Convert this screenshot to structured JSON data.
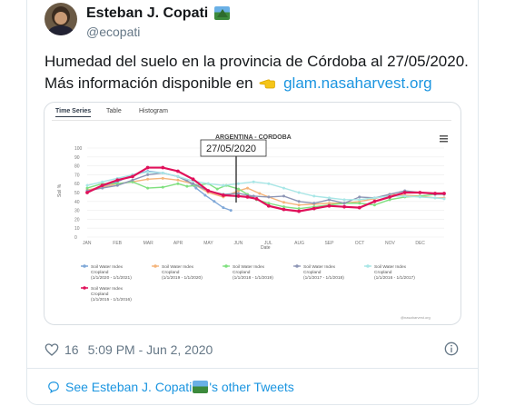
{
  "author": {
    "name": "Esteban J. Copati",
    "handle": "@ecopati",
    "flag_icon": "mountain-landscape-emoji"
  },
  "tweet": {
    "line1": "Humedad del suelo en la provincia de Córdoba al 27/05/2020.",
    "line2_prefix": "Más información disponible en",
    "pointer_icon": "backhand-index-pointing-left-emoji",
    "link_text": "glam.nasaharvest.org"
  },
  "chart_widget": {
    "tabs": [
      "Time Series",
      "Table",
      "Histogram"
    ],
    "active_tab": "Time Series",
    "watermark": "@nasaharvest.org"
  },
  "chart_data": {
    "type": "line",
    "title": "ARGENTINA - CORDOBA",
    "annotation": "27/05/2020",
    "xlabel": "Date",
    "ylabel": "Soil %",
    "x_ticks": [
      "JAN",
      "FEB",
      "MAR",
      "APR",
      "MAY",
      "JUN",
      "JUL",
      "AUG",
      "SEP",
      "OCT",
      "NOV",
      "DEC"
    ],
    "ylim": [
      0,
      100
    ],
    "y_ticks": [
      0,
      10,
      20,
      30,
      40,
      50,
      60,
      70,
      80,
      90,
      100
    ],
    "grid": true,
    "legend_position": "bottom",
    "series": [
      {
        "label": "Soil Water Index\nCropland\n(1/1/2020 - 1/1/2021)",
        "color": "#7fa8d8",
        "points": [
          [
            0.0,
            50
          ],
          [
            0.5,
            57
          ],
          [
            1.0,
            62
          ],
          [
            1.5,
            70
          ],
          [
            2.0,
            74
          ],
          [
            2.5,
            72
          ],
          [
            3.0,
            68
          ],
          [
            3.3,
            63
          ],
          [
            3.6,
            55
          ],
          [
            3.9,
            47
          ],
          [
            4.2,
            40
          ],
          [
            4.5,
            33
          ],
          [
            4.75,
            30
          ]
        ]
      },
      {
        "label": "Soil Water Index\nCropland\n(1/1/2019 - 1/1/2020)",
        "color": "#f4b47a",
        "points": [
          [
            0.0,
            53
          ],
          [
            0.5,
            56
          ],
          [
            1.0,
            60
          ],
          [
            1.5,
            62
          ],
          [
            2.0,
            65
          ],
          [
            2.5,
            66
          ],
          [
            3.0,
            64
          ],
          [
            3.5,
            60
          ],
          [
            4.0,
            50
          ],
          [
            4.5,
            45
          ],
          [
            5.0,
            52
          ],
          [
            5.3,
            55
          ],
          [
            5.7,
            49
          ],
          [
            6.0,
            45
          ],
          [
            6.5,
            39
          ],
          [
            7.0,
            36
          ],
          [
            7.5,
            37
          ],
          [
            8.0,
            38
          ],
          [
            8.5,
            38
          ],
          [
            9.0,
            40
          ],
          [
            9.5,
            43
          ],
          [
            10.0,
            48
          ],
          [
            10.5,
            47
          ],
          [
            11.0,
            46
          ],
          [
            11.5,
            44
          ],
          [
            11.8,
            44
          ]
        ]
      },
      {
        "label": "Soil Water Index\nCropland\n(1/1/2018 - 1/1/2019)",
        "color": "#7fe07f",
        "points": [
          [
            0.0,
            55
          ],
          [
            0.5,
            60
          ],
          [
            1.0,
            60
          ],
          [
            1.5,
            62
          ],
          [
            2.0,
            55
          ],
          [
            2.5,
            56
          ],
          [
            3.0,
            60
          ],
          [
            3.3,
            57
          ],
          [
            3.6,
            58
          ],
          [
            4.0,
            60
          ],
          [
            4.3,
            54
          ],
          [
            4.6,
            58
          ],
          [
            5.0,
            54
          ],
          [
            5.3,
            48
          ],
          [
            5.6,
            42
          ],
          [
            6.0,
            38
          ],
          [
            6.5,
            34
          ],
          [
            7.0,
            32
          ],
          [
            7.5,
            34
          ],
          [
            8.0,
            36
          ],
          [
            8.5,
            38
          ],
          [
            9.0,
            38
          ],
          [
            9.5,
            36
          ],
          [
            10.0,
            42
          ],
          [
            10.5,
            45
          ],
          [
            11.0,
            46
          ],
          [
            11.5,
            48
          ],
          [
            11.8,
            48
          ]
        ]
      },
      {
        "label": "Soil Water Index\nCropland\n(1/1/2017 - 1/1/2018)",
        "color": "#8d95b5",
        "points": [
          [
            0.0,
            52
          ],
          [
            0.5,
            55
          ],
          [
            1.0,
            58
          ],
          [
            1.5,
            64
          ],
          [
            2.0,
            70
          ],
          [
            2.5,
            72
          ],
          [
            3.0,
            68
          ],
          [
            3.5,
            60
          ],
          [
            4.0,
            52
          ],
          [
            4.5,
            48
          ],
          [
            5.0,
            49
          ],
          [
            5.5,
            46
          ],
          [
            6.0,
            45
          ],
          [
            6.5,
            46
          ],
          [
            7.0,
            40
          ],
          [
            7.5,
            38
          ],
          [
            8.0,
            42
          ],
          [
            8.5,
            38
          ],
          [
            9.0,
            45
          ],
          [
            9.5,
            44
          ],
          [
            10.0,
            48
          ],
          [
            10.5,
            52
          ],
          [
            11.0,
            50
          ],
          [
            11.5,
            48
          ],
          [
            11.8,
            48
          ]
        ]
      },
      {
        "label": "Soil Water Index\nCropland\n(1/1/2016 - 1/1/2017)",
        "color": "#a8e6e6",
        "points": [
          [
            0.0,
            58
          ],
          [
            0.5,
            62
          ],
          [
            1.0,
            66
          ],
          [
            1.5,
            70
          ],
          [
            2.0,
            73
          ],
          [
            2.5,
            72
          ],
          [
            3.0,
            68
          ],
          [
            3.5,
            63
          ],
          [
            4.0,
            60
          ],
          [
            4.5,
            58
          ],
          [
            5.0,
            60
          ],
          [
            5.5,
            62
          ],
          [
            6.0,
            60
          ],
          [
            6.5,
            55
          ],
          [
            7.0,
            50
          ],
          [
            7.5,
            46
          ],
          [
            8.0,
            44
          ],
          [
            8.5,
            42
          ],
          [
            9.0,
            42
          ],
          [
            9.5,
            44
          ],
          [
            10.0,
            46
          ],
          [
            10.5,
            46
          ],
          [
            11.0,
            45
          ],
          [
            11.5,
            44
          ],
          [
            11.8,
            43
          ]
        ]
      },
      {
        "label": "Soil Water Index\nCropland\n(1/1/2015 - 1/1/2016)",
        "color": "#e0105a",
        "points": [
          [
            0.0,
            50
          ],
          [
            0.5,
            58
          ],
          [
            1.0,
            64
          ],
          [
            1.5,
            68
          ],
          [
            2.0,
            78
          ],
          [
            2.5,
            78
          ],
          [
            3.0,
            74
          ],
          [
            3.5,
            65
          ],
          [
            4.0,
            52
          ],
          [
            4.5,
            47
          ],
          [
            5.0,
            46
          ],
          [
            5.3,
            45
          ],
          [
            5.6,
            43
          ],
          [
            6.0,
            35
          ],
          [
            6.5,
            31
          ],
          [
            7.0,
            29
          ],
          [
            7.5,
            32
          ],
          [
            8.0,
            35
          ],
          [
            8.5,
            34
          ],
          [
            9.0,
            33
          ],
          [
            9.5,
            40
          ],
          [
            10.0,
            45
          ],
          [
            10.5,
            50
          ],
          [
            11.0,
            50
          ],
          [
            11.5,
            49
          ],
          [
            11.8,
            49
          ]
        ]
      }
    ]
  },
  "meta": {
    "likes": "16",
    "timestamp": "5:09 PM - Jun 2, 2020"
  },
  "footer": {
    "prefix": "See Esteban J. Copati",
    "suffix": "'s other Tweets"
  }
}
